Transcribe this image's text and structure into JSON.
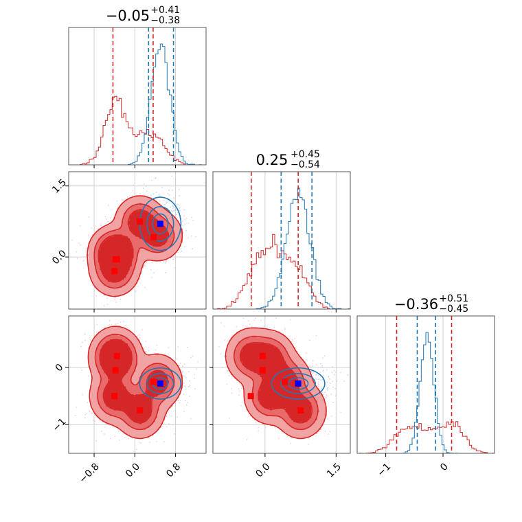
{
  "chart_data": {
    "type": "corner",
    "colors": {
      "red": "#d62728",
      "blue": "#1f77b4",
      "red_light": "#f1a3a3",
      "red_mid": "#e86a6a",
      "marker_red": "#ff0000",
      "marker_blue": "#0000ff"
    },
    "parameters": [
      {
        "range": [
          -1.3,
          1.4
        ],
        "ticks": [
          -0.8,
          0.0,
          0.8
        ],
        "tick_labels": [
          "−0.8",
          "0.0",
          "0.8"
        ]
      },
      {
        "range": [
          -1.1,
          1.8
        ],
        "ticks": [
          0.0,
          1.5
        ],
        "tick_labels": [
          "0.0",
          "1.5"
        ]
      },
      {
        "range": [
          -1.5,
          0.9
        ],
        "ticks": [
          -1,
          0
        ],
        "tick_labels": [
          "−1",
          "0"
        ]
      }
    ],
    "titles": [
      {
        "value": "−0.05",
        "plus": "+0.41",
        "minus": "−0.38"
      },
      {
        "value": "0.25",
        "plus": "+0.45",
        "minus": "−0.54"
      },
      {
        "value": "−0.36",
        "plus": "+0.51",
        "minus": "−0.45"
      }
    ],
    "quantiles": {
      "red": [
        [
          -0.43,
          0.36
        ],
        [
          -0.29,
          0.7
        ],
        [
          -0.81,
          0.15
        ]
      ],
      "blue": [
        [
          0.27,
          0.76
        ],
        [
          0.34,
          0.99
        ],
        [
          -0.45,
          -0.13
        ]
      ]
    },
    "red_clusters": [
      {
        "x": [
          -0.35,
          0.1,
          0.15
        ],
        "w": 1.0
      },
      {
        "x": [
          0.1,
          0.75,
          -0.75
        ],
        "w": 1.0
      },
      {
        "x": [
          0.45,
          0.45,
          -0.25
        ],
        "w": 0.9
      },
      {
        "x": [
          -0.4,
          0.1,
          -0.5
        ],
        "w": 1.0
      },
      {
        "x": [
          -0.4,
          -0.3,
          0.2
        ],
        "w": 0.9
      }
    ],
    "red_markers": [
      {
        "x": [
          -0.35,
          -0.05,
          0.2
        ]
      },
      {
        "x": [
          0.1,
          0.75,
          -0.75
        ]
      },
      {
        "x": [
          0.37,
          0.42,
          -0.25
        ]
      },
      {
        "x": [
          -0.4,
          -0.3,
          -0.5
        ]
      },
      {
        "x": [
          -0.38,
          -0.05,
          -0.05
        ]
      }
    ],
    "blue_marker": {
      "x": [
        0.5,
        0.7,
        -0.28
      ]
    },
    "blue_cluster": {
      "x": [
        0.5,
        0.7,
        -0.28
      ],
      "sd": [
        0.18,
        0.25,
        0.12
      ]
    }
  }
}
